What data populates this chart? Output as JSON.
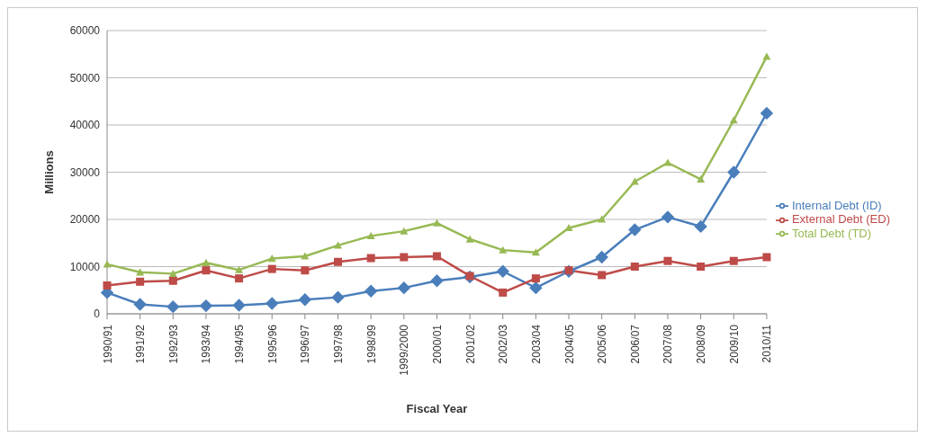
{
  "chart_data": {
    "type": "line",
    "xlabel": "Fiscal Year",
    "ylabel": "Millions",
    "categories": [
      "1990/91",
      "1991/92",
      "1992/93",
      "1993/94",
      "1994/95",
      "1995/96",
      "1996/97",
      "1997/98",
      "1998/99",
      "1999/2000",
      "2000/01",
      "2001/02",
      "2002/03",
      "2003/04",
      "2004/05",
      "2005/06",
      "2006/07",
      "2007/08",
      "2008/09",
      "2009/10",
      "2010/11"
    ],
    "series": [
      {
        "name": "Internal Debt (ID)",
        "color": "#4a7ebb",
        "marker": "diamond",
        "values": [
          4500,
          2000,
          1500,
          1700,
          1800,
          2200,
          3000,
          3500,
          4800,
          5500,
          7000,
          7800,
          9000,
          5500,
          9000,
          12000,
          17800,
          20500,
          18500,
          30000,
          42500
        ]
      },
      {
        "name": "External Debt (ED)",
        "color": "#be4b48",
        "marker": "square",
        "values": [
          6000,
          6800,
          7000,
          9200,
          7500,
          9500,
          9200,
          11000,
          11800,
          12000,
          12200,
          8000,
          4500,
          7500,
          9200,
          8200,
          10000,
          11200,
          10000,
          11200,
          12000
        ]
      },
      {
        "name": "Total Debt (TD)",
        "color": "#98b954",
        "marker": "triangle",
        "values": [
          10500,
          8800,
          8500,
          10800,
          9300,
          11700,
          12200,
          14500,
          16500,
          17500,
          19200,
          15800,
          13500,
          13000,
          18200,
          20000,
          28000,
          32000,
          28500,
          41000,
          54500
        ]
      }
    ],
    "ylim": [
      0,
      60000
    ],
    "yticks": [
      0,
      10000,
      20000,
      30000,
      40000,
      50000,
      60000
    ],
    "grid": "y",
    "legend": "right"
  }
}
